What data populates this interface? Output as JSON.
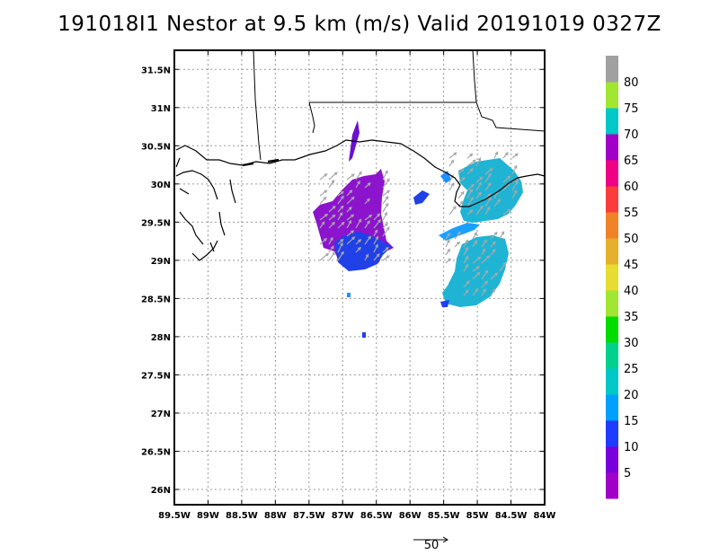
{
  "title": "191018I1 Nestor at 9.5 km (m/s) Valid 20191019 0327Z",
  "map": {
    "lon_range": [
      -89.5,
      -84
    ],
    "lat_range": [
      25.8,
      31.75
    ],
    "lon_ticks": [
      "89.5W",
      "89W",
      "88.5W",
      "88W",
      "87.5W",
      "87W",
      "86.5W",
      "86W",
      "85.5W",
      "85W",
      "84.5W",
      "84W"
    ],
    "lat_ticks": [
      "26N",
      "26.5N",
      "27N",
      "27.5N",
      "28N",
      "28.5N",
      "29N",
      "29.5N",
      "30N",
      "30.5N",
      "31N",
      "31.5N"
    ],
    "grid": true
  },
  "colorbar": {
    "labels": [
      "5",
      "10",
      "15",
      "20",
      "25",
      "30",
      "35",
      "40",
      "45",
      "50",
      "55",
      "60",
      "65",
      "70",
      "75",
      "80"
    ],
    "colors": [
      "#a000c8",
      "#7800dc",
      "#1e3cff",
      "#00a0ff",
      "#00c8c8",
      "#00d28c",
      "#00dc00",
      "#a0e632",
      "#e6dc32",
      "#e6af2d",
      "#f08228",
      "#fa3c3c",
      "#f00082",
      "#a000c8",
      "#00c8c8",
      "#a0e632",
      "#a0a0a0"
    ]
  },
  "reference_vector": {
    "label": "50"
  }
}
